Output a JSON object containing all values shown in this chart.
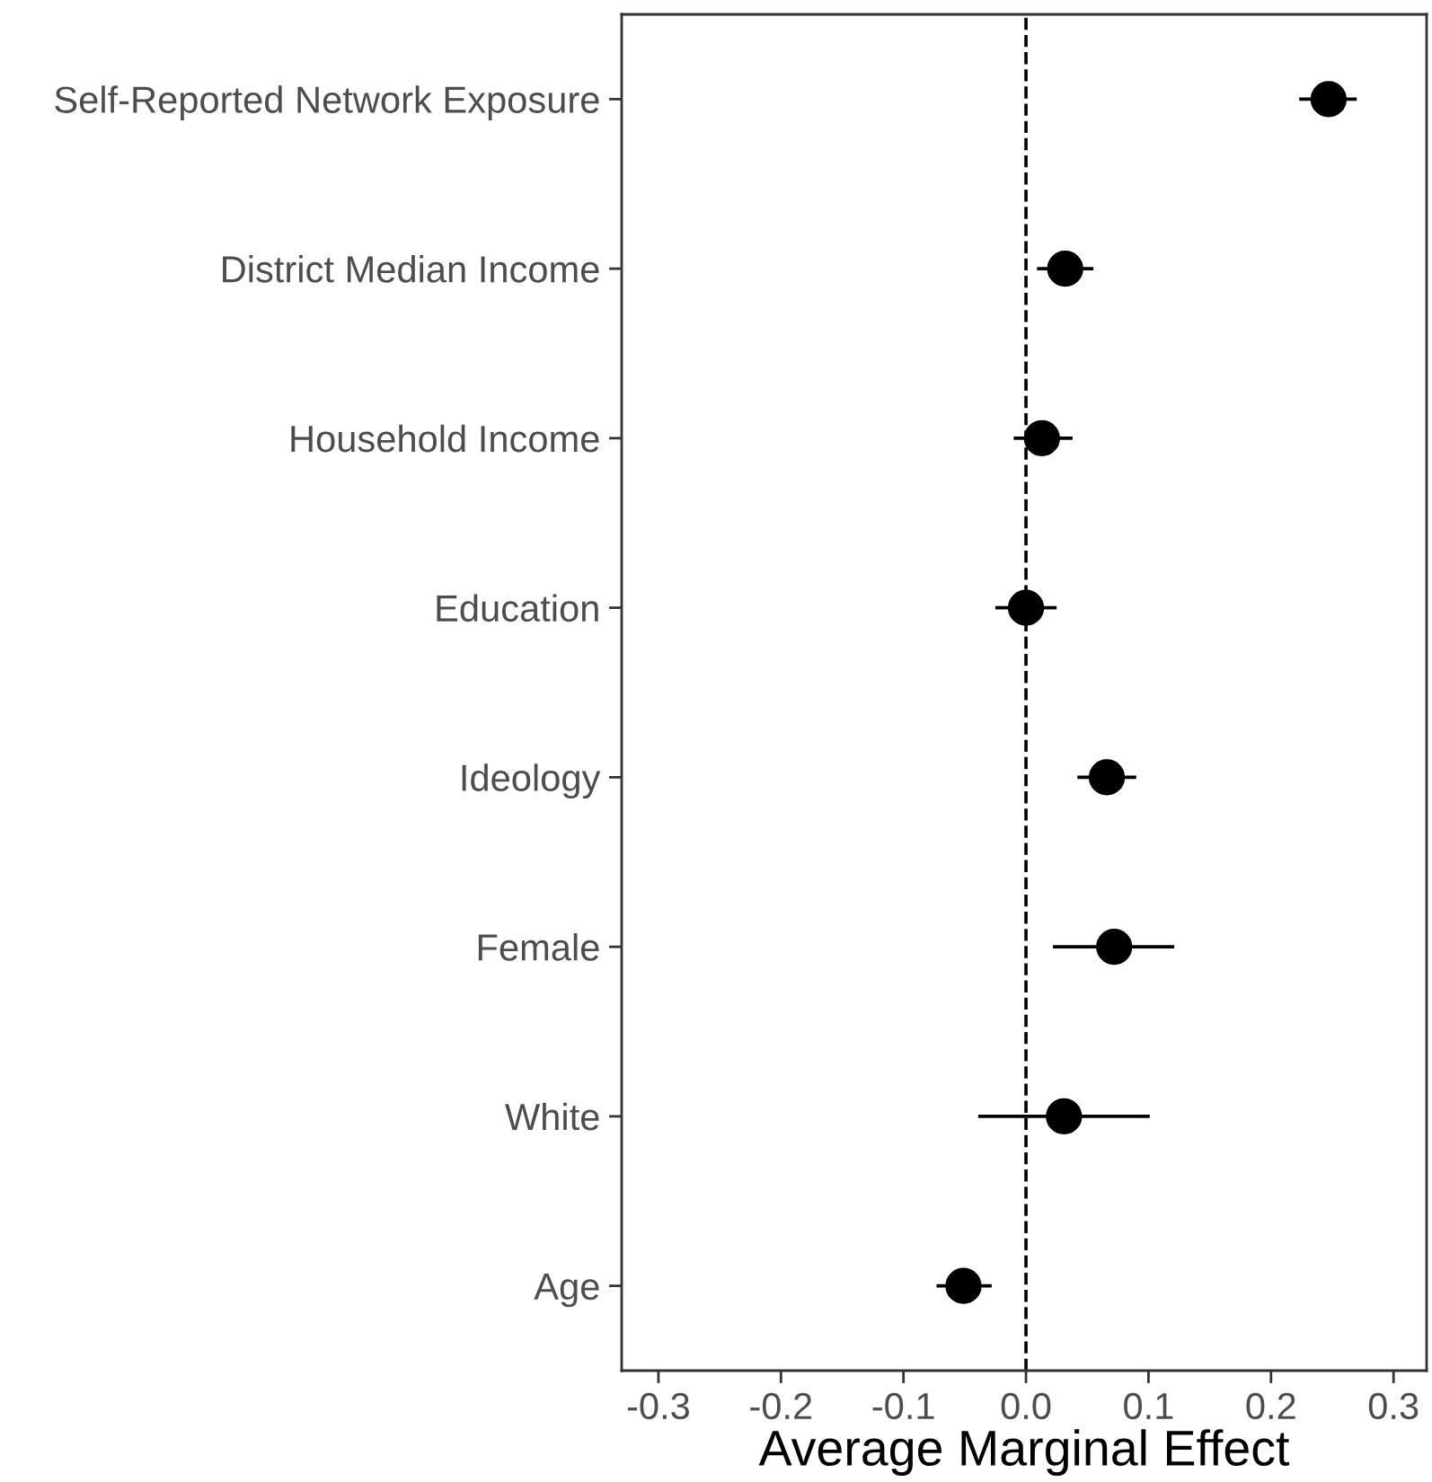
{
  "chart_data": {
    "type": "scatter",
    "orientation": "horizontal",
    "xlabel": "Average Marginal Effect",
    "categories": [
      "Self-Reported Network Exposure",
      "District Median Income",
      "Household Income",
      "Education",
      "Ideology",
      "Female",
      "White",
      "Age"
    ],
    "values": [
      0.247,
      0.032,
      0.013,
      0.0,
      0.066,
      0.072,
      0.031,
      -0.051
    ],
    "errors": [
      [
        0.223,
        0.27
      ],
      [
        0.009,
        0.055
      ],
      [
        -0.01,
        0.038
      ],
      [
        -0.025,
        0.025
      ],
      [
        0.042,
        0.09
      ],
      [
        0.022,
        0.121
      ],
      [
        -0.039,
        0.101
      ],
      [
        -0.073,
        -0.028
      ]
    ],
    "color": "#000000",
    "marker": "circle",
    "xlim": [
      -0.33,
      0.327
    ],
    "xticks": [
      -0.3,
      -0.2,
      -0.1,
      {
        "value": 0,
        "label": "0.0"
      },
      0.1,
      0.2,
      0.3
    ],
    "ref_lines": [
      {
        "axis": "x",
        "value": 0,
        "label": null,
        "line_style": "dashed",
        "color": "#000000"
      }
    ],
    "grid": false,
    "legend": false
  }
}
